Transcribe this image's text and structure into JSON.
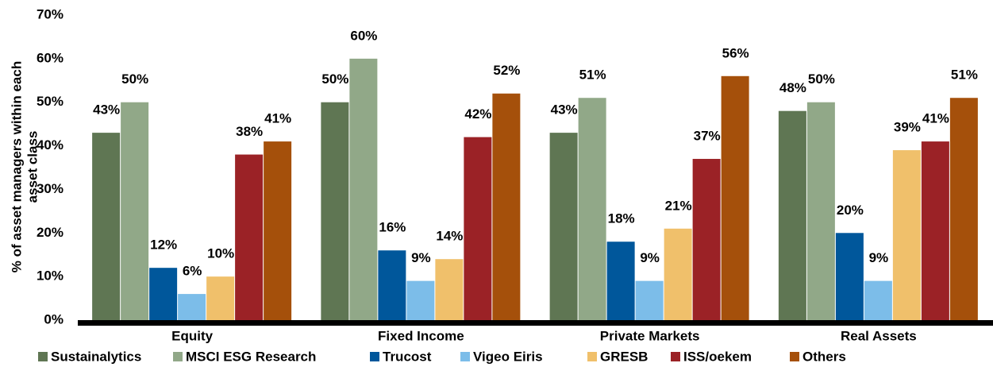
{
  "chart_data": {
    "type": "bar",
    "ylabel": [
      "% of asset managers within each",
      "asset class"
    ],
    "categories": [
      "Equity",
      "Fixed Income",
      "Private Markets",
      "Real Assets"
    ],
    "series": [
      {
        "name": "Sustainalytics",
        "color": "#5f7653",
        "values": [
          43,
          50,
          43,
          48
        ],
        "value_labels": [
          "43%",
          "50%",
          "43%",
          "48%"
        ]
      },
      {
        "name": "MSCI ESG Research",
        "color": "#91a888",
        "values": [
          50,
          60,
          51,
          50
        ],
        "value_labels": [
          "50%",
          "60%",
          "51%",
          "50%"
        ]
      },
      {
        "name": "Trucost",
        "color": "#00579b",
        "values": [
          12,
          16,
          18,
          20
        ],
        "value_labels": [
          "12%",
          "16%",
          "18%",
          "20%"
        ]
      },
      {
        "name": "Vigeo Eiris",
        "color": "#7cbde9",
        "values": [
          6,
          9,
          9,
          9
        ],
        "value_labels": [
          "6%",
          "9%",
          "9%",
          "9%"
        ]
      },
      {
        "name": "GRESB",
        "color": "#f0c06b",
        "values": [
          10,
          14,
          21,
          39
        ],
        "value_labels": [
          "10%",
          "14%",
          "21%",
          "39%"
        ]
      },
      {
        "name": "ISS/oekem",
        "color": "#9b2226",
        "values": [
          38,
          42,
          37,
          41
        ],
        "value_labels": [
          "38%",
          "42%",
          "37%",
          "41%"
        ]
      },
      {
        "name": "Others",
        "color": "#a5500b",
        "values": [
          41,
          52,
          56,
          51
        ],
        "value_labels": [
          "41%",
          "52%",
          "56%",
          "51%"
        ]
      }
    ],
    "ylim": [
      0,
      70
    ],
    "yticks": [
      {
        "value": 0,
        "label": "0%"
      },
      {
        "value": 10,
        "label": "10%"
      },
      {
        "value": 20,
        "label": "20%"
      },
      {
        "value": 30,
        "label": "30%"
      },
      {
        "value": 40,
        "label": "40%"
      },
      {
        "value": 50,
        "label": "50%"
      },
      {
        "value": 60,
        "label": "60%"
      },
      {
        "value": 70,
        "label": "70%"
      }
    ]
  }
}
